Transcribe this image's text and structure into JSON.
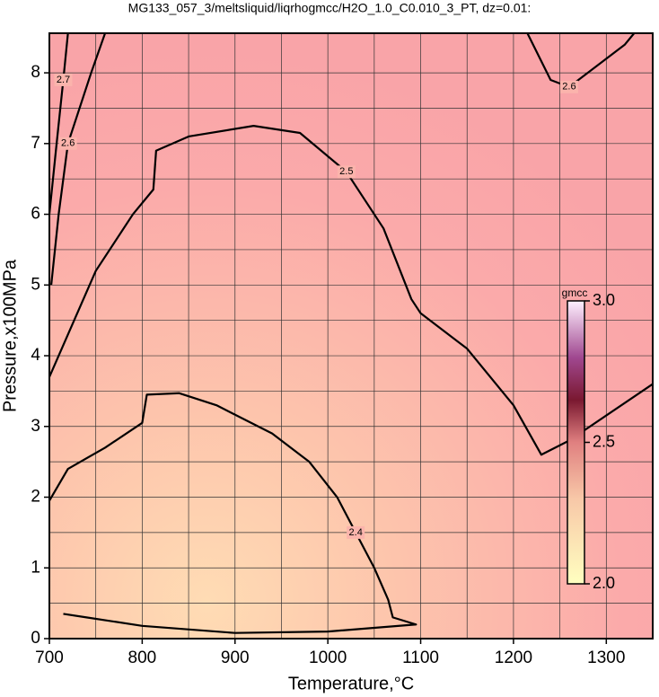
{
  "chart_data": {
    "type": "contour",
    "title": "MG133_057_3/meltsliquid/liqrhogmcc/H2O_1.0_C0.010_3_PT, dz=0.01:",
    "x_label": "Temperature,°C",
    "y_label": "Pressure,x100MPa",
    "xlim": [
      700,
      1350
    ],
    "ylim": [
      0,
      8.56
    ],
    "xticks": [
      700,
      800,
      900,
      1000,
      1100,
      1200,
      1300
    ],
    "yticks": [
      0,
      1,
      2,
      3,
      4,
      5,
      6,
      7,
      8
    ],
    "xgrid": [
      700,
      750,
      800,
      850,
      900,
      950,
      1000,
      1050,
      1100,
      1150,
      1200,
      1250,
      1300
    ],
    "ygrid": [
      0.5,
      1,
      1.5,
      2,
      2.5,
      3,
      3.5,
      4,
      4.5,
      5,
      5.5,
      6,
      6.5,
      7,
      7.5,
      8
    ],
    "grid": true,
    "contours": [
      {
        "level": 2.5,
        "color": "#000000",
        "x": [
          700,
          750,
          790,
          812,
          815,
          850,
          920,
          970,
          1020,
          1060,
          1090,
          1100,
          1150,
          1200,
          1230,
          1260,
          1350
        ],
        "y": [
          3.7,
          5.2,
          6.0,
          6.35,
          6.9,
          7.1,
          7.25,
          7.15,
          6.6,
          5.8,
          4.8,
          4.6,
          4.1,
          3.3,
          2.6,
          2.8,
          3.6
        ]
      },
      {
        "level": 2.4,
        "color": "#000000",
        "x": [
          700,
          720,
          760,
          800,
          805,
          840,
          880,
          940,
          980,
          1010,
          1030,
          1050,
          1065,
          1070,
          1095,
          1000,
          900,
          800,
          740,
          715
        ],
        "y": [
          1.95,
          2.4,
          2.7,
          3.05,
          3.45,
          3.47,
          3.3,
          2.9,
          2.5,
          2.0,
          1.5,
          1.0,
          0.55,
          0.3,
          0.2,
          0.1,
          0.08,
          0.18,
          0.3,
          0.35
        ]
      },
      {
        "level": 2.6,
        "color": "#000000",
        "x": [
          702,
          710,
          720,
          745,
          760
        ],
        "y": [
          5.0,
          6.0,
          7.0,
          8.0,
          8.56
        ]
      },
      {
        "level": 2.6,
        "color": "#000000",
        "x": [
          1215,
          1240,
          1260,
          1320,
          1330
        ],
        "y": [
          8.56,
          7.9,
          7.8,
          8.4,
          8.56
        ]
      },
      {
        "level": 2.7,
        "color": "#000000",
        "x": [
          700,
          707,
          715,
          720
        ],
        "y": [
          6.0,
          6.9,
          7.9,
          8.56
        ]
      }
    ],
    "colorbar": {
      "label": "gmcc",
      "lim": [
        2.0,
        3.0
      ],
      "ticks": [
        {
          "value": 2.0,
          "label": "2.0"
        },
        2.5,
        {
          "value": 3.0,
          "label": "3.0"
        }
      ]
    }
  }
}
